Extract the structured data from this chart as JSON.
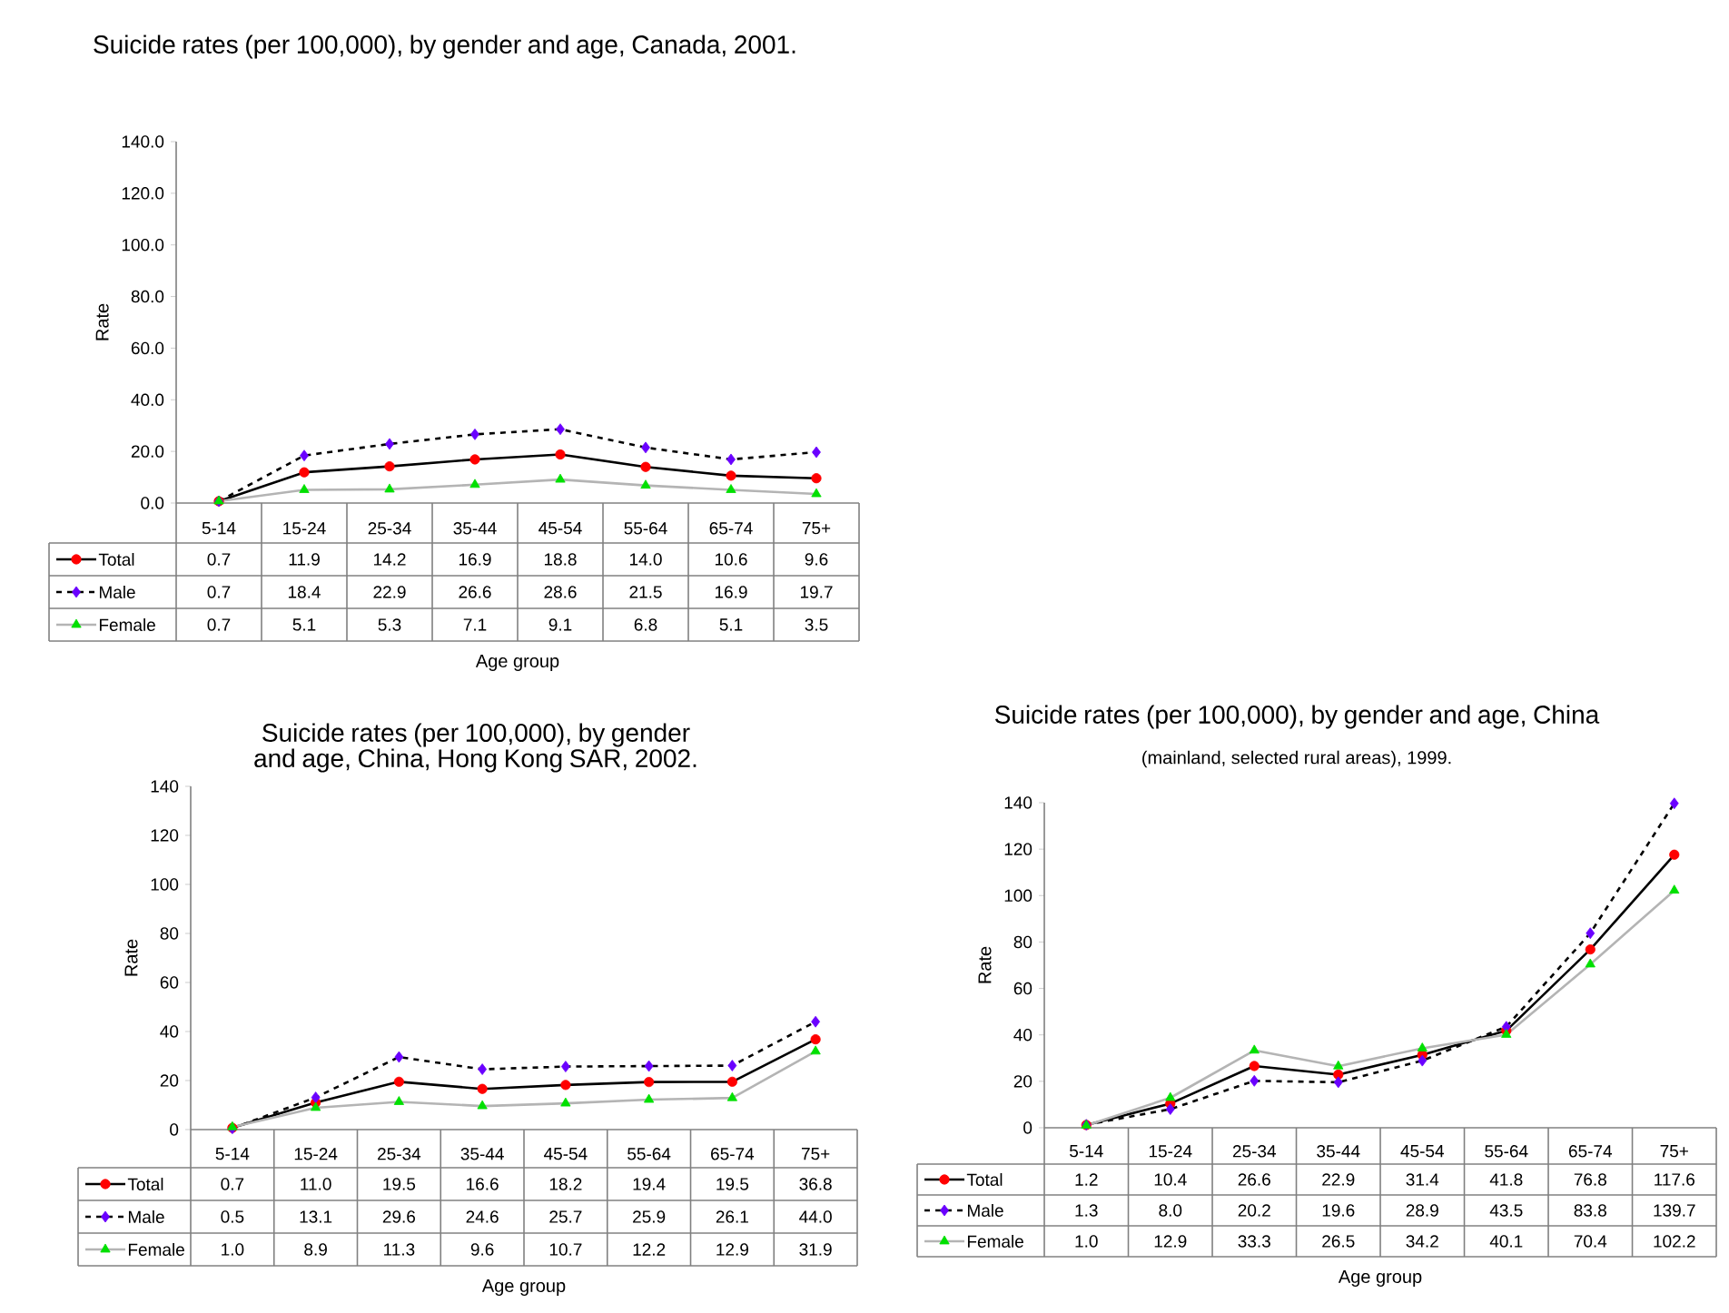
{
  "chart_data": [
    {
      "type": "line",
      "title": "Suicide rates (per 100,000), by gender and age, Canada, 2001.",
      "xlabel": "Age group",
      "ylabel": "Rate",
      "categories": [
        "5-14",
        "15-24",
        "25-34",
        "35-44",
        "45-54",
        "55-64",
        "65-74",
        "75+"
      ],
      "ylim": [
        0,
        140
      ],
      "yticks": [
        {
          "value": 0,
          "label": "0.0"
        },
        {
          "value": 20,
          "label": "20.0"
        },
        {
          "value": 40,
          "label": "40.0"
        },
        {
          "value": 60,
          "label": "60.0"
        },
        {
          "value": 80,
          "label": "80.0"
        },
        {
          "value": 100,
          "label": "100.0"
        },
        {
          "value": 120,
          "label": "120.0"
        },
        {
          "value": 140,
          "label": "140.0"
        }
      ],
      "legend": "bottom",
      "series": [
        {
          "name": "Total",
          "color": "#000000",
          "colors": [
            "#ff0000",
            "#ff0000",
            "#ff0000",
            "#ff0000",
            "#ff0000",
            "#ff0000",
            "#ff0000",
            "#ff0000"
          ],
          "marker": "circle",
          "line_style": "solid",
          "values": [
            0.7,
            11.9,
            14.2,
            16.9,
            18.8,
            14.0,
            10.6,
            9.6
          ],
          "value_labels": [
            "0.7",
            "11.9",
            "14.2",
            "16.9",
            "18.8",
            "14.0",
            "10.6",
            "9.6"
          ]
        },
        {
          "name": "Male",
          "color": "#000000",
          "colors": [
            "#6a00ff",
            "#6a00ff",
            "#6a00ff",
            "#6a00ff",
            "#6a00ff",
            "#6a00ff",
            "#6a00ff",
            "#6a00ff"
          ],
          "marker": "diamond",
          "line_style": "dashed",
          "values": [
            0.7,
            18.4,
            22.9,
            26.6,
            28.6,
            21.5,
            16.9,
            19.7
          ],
          "value_labels": [
            "0.7",
            "18.4",
            "22.9",
            "26.6",
            "28.6",
            "21.5",
            "16.9",
            "19.7"
          ]
        },
        {
          "name": "Female",
          "color": "#b4b4b4",
          "colors": [
            "#00e000",
            "#00e000",
            "#00e000",
            "#00e000",
            "#00e000",
            "#00e000",
            "#00e000",
            "#00e000"
          ],
          "marker": "triangle",
          "line_style": "solid",
          "values": [
            0.7,
            5.1,
            5.3,
            7.1,
            9.1,
            6.8,
            5.1,
            3.5
          ],
          "value_labels": [
            "0.7",
            "5.1",
            "5.3",
            "7.1",
            "9.1",
            "6.8",
            "5.1",
            "3.5"
          ]
        }
      ]
    },
    {
      "type": "line",
      "title": "Suicide rates (per 100,000), by gender and age, China, Hong Kong SAR, 2002.",
      "xlabel": "Age group",
      "ylabel": "Rate",
      "categories": [
        "5-14",
        "15-24",
        "25-34",
        "35-44",
        "45-54",
        "55-64",
        "65-74",
        "75+"
      ],
      "ylim": [
        0,
        140
      ],
      "yticks": [
        0,
        20,
        40,
        60,
        80,
        100,
        120,
        140
      ],
      "legend": "bottom",
      "series": [
        {
          "name": "Total",
          "color": "#000000",
          "colors": [
            "#ff0000",
            "#ff0000",
            "#ff0000",
            "#ff0000",
            "#ff0000",
            "#ff0000",
            "#ff0000",
            "#ff0000"
          ],
          "marker": "circle",
          "line_style": "solid",
          "values": [
            0.7,
            11.0,
            19.5,
            16.6,
            18.2,
            19.4,
            19.5,
            36.8
          ],
          "value_labels": [
            "0.7",
            "11.0",
            "19.5",
            "16.6",
            "18.2",
            "19.4",
            "19.5",
            "36.8"
          ]
        },
        {
          "name": "Male",
          "color": "#000000",
          "colors": [
            "#6a00ff",
            "#6a00ff",
            "#6a00ff",
            "#6a00ff",
            "#6a00ff",
            "#6a00ff",
            "#6a00ff",
            "#6a00ff"
          ],
          "marker": "diamond",
          "line_style": "dashed",
          "values": [
            0.5,
            13.1,
            29.6,
            24.6,
            25.7,
            25.9,
            26.1,
            44.0
          ],
          "value_labels": [
            "0.5",
            "13.1",
            "29.6",
            "24.6",
            "25.7",
            "25.9",
            "26.1",
            "44.0"
          ]
        },
        {
          "name": "Female",
          "color": "#b4b4b4",
          "colors": [
            "#00e000",
            "#00e000",
            "#00e000",
            "#00e000",
            "#00e000",
            "#00e000",
            "#00e000",
            "#00e000"
          ],
          "marker": "triangle",
          "line_style": "solid",
          "values": [
            1.0,
            8.9,
            11.3,
            9.6,
            10.7,
            12.2,
            12.9,
            31.9
          ],
          "value_labels": [
            "1.0",
            "8.9",
            "11.3",
            "9.6",
            "10.7",
            "12.2",
            "12.9",
            "31.9"
          ]
        }
      ]
    },
    {
      "type": "line",
      "title": "Suicide rates (per 100,000), by gender and age, China",
      "subtitle": "(mainland, selected rural areas), 1999.",
      "xlabel": "Age group",
      "ylabel": "Rate",
      "categories": [
        "5-14",
        "15-24",
        "25-34",
        "35-44",
        "45-54",
        "55-64",
        "65-74",
        "75+"
      ],
      "ylim": [
        0,
        140
      ],
      "yticks": [
        0,
        20,
        40,
        60,
        80,
        100,
        120,
        140
      ],
      "legend": "bottom",
      "series": [
        {
          "name": "Total",
          "color": "#000000",
          "colors": [
            "#ff0000",
            "#ff0000",
            "#ff0000",
            "#ff0000",
            "#ff0000",
            "#ff0000",
            "#ff0000",
            "#ff0000"
          ],
          "marker": "circle",
          "line_style": "solid",
          "values": [
            1.2,
            10.4,
            26.6,
            22.9,
            31.4,
            41.8,
            76.8,
            117.6
          ],
          "value_labels": [
            "1.2",
            "10.4",
            "26.6",
            "22.9",
            "31.4",
            "41.8",
            "76.8",
            "117.6"
          ]
        },
        {
          "name": "Male",
          "color": "#000000",
          "colors": [
            "#6a00ff",
            "#6a00ff",
            "#6a00ff",
            "#6a00ff",
            "#6a00ff",
            "#6a00ff",
            "#6a00ff",
            "#6a00ff"
          ],
          "marker": "diamond",
          "line_style": "dashed",
          "values": [
            1.3,
            8.0,
            20.2,
            19.6,
            28.9,
            43.5,
            83.8,
            139.7
          ],
          "value_labels": [
            "1.3",
            "8.0",
            "20.2",
            "19.6",
            "28.9",
            "43.5",
            "83.8",
            "139.7"
          ]
        },
        {
          "name": "Female",
          "color": "#b4b4b4",
          "colors": [
            "#00e000",
            "#00e000",
            "#00e000",
            "#00e000",
            "#00e000",
            "#00e000",
            "#00e000",
            "#00e000"
          ],
          "marker": "triangle",
          "line_style": "solid",
          "values": [
            1.0,
            12.9,
            33.3,
            26.5,
            34.2,
            40.1,
            70.4,
            102.2
          ],
          "value_labels": [
            "1.0",
            "12.9",
            "33.3",
            "26.5",
            "34.2",
            "40.1",
            "70.4",
            "102.2"
          ]
        }
      ]
    }
  ]
}
